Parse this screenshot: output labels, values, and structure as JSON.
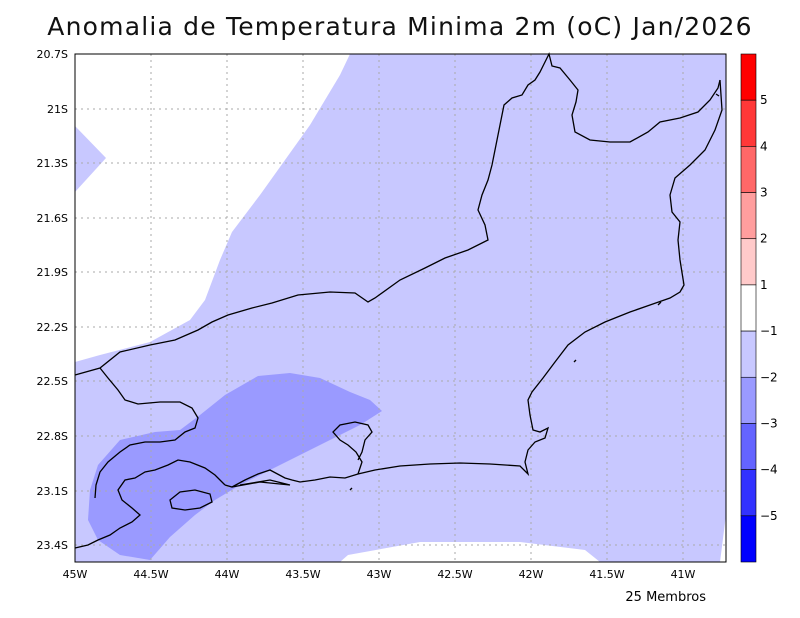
{
  "title": "Anomalia de Temperatura Minima 2m (oC) Jan/2026",
  "lat_labels": [
    "20.7S",
    "21S",
    "21.3S",
    "21.6S",
    "21.9S",
    "22.2S",
    "22.5S",
    "22.8S",
    "23.1S",
    "23.4S"
  ],
  "lon_labels": [
    "45W",
    "44.5W",
    "44W",
    "43.5W",
    "43W",
    "42.5W",
    "42W",
    "41.5W",
    "41W"
  ],
  "colorbar": {
    "labels": [
      "5",
      "4",
      "3",
      "2",
      "1",
      "−1",
      "−2",
      "−3",
      "−4",
      "−5"
    ],
    "colors": [
      "#ff0000",
      "#ff3838",
      "#ff6868",
      "#ff9e9e",
      "#ffcaca",
      "#ffffff",
      "#c8c8ff",
      "#9a9aff",
      "#6464ff",
      "#3232ff",
      "#0000ff"
    ]
  },
  "members_label": "25 Membros",
  "colors": {
    "anomaly_0_to_m1": "#ffffff",
    "anomaly_m1_to_m2": "#c8c8ff",
    "anomaly_m2_to_m3": "#9a9aff",
    "coastline": "#000000",
    "grid": "#aaaaaa"
  }
}
